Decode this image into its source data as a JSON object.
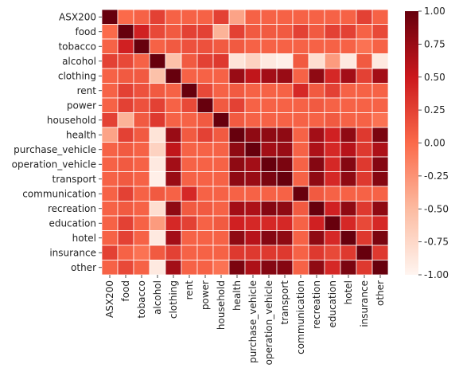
{
  "chart_data": {
    "type": "heatmap",
    "title": "",
    "xlabel": "",
    "ylabel": "",
    "labels": [
      "ASX200",
      "food",
      "tobacco",
      "alcohol",
      "clothing",
      "rent",
      "power",
      "household",
      "health",
      "purchase_vehicle",
      "operation_vehicle",
      "transport",
      "communication",
      "recreation",
      "education",
      "hotel",
      "insurance",
      "other"
    ],
    "value_range": [
      -1,
      1
    ],
    "colorbar_ticks": [
      "1.00",
      "0.75",
      "0.50",
      "0.25",
      "0.00",
      "-0.25",
      "-0.50",
      "-0.75",
      "-1.00"
    ],
    "colorscale": [
      "#fff5f0",
      "#fcbba1",
      "#fb6a4a",
      "#cb181d",
      "#67000d"
    ],
    "gridlines": "white",
    "matrix": [
      [
        1.0,
        0.0,
        0.05,
        0.25,
        0.05,
        0.05,
        0.05,
        0.25,
        -0.35,
        0.05,
        0.05,
        0.05,
        0.05,
        0.05,
        0.05,
        0.05,
        0.25,
        0.05
      ],
      [
        0.0,
        1.0,
        0.45,
        0.2,
        0.1,
        0.25,
        0.25,
        -0.45,
        0.25,
        0.1,
        0.1,
        0.1,
        0.25,
        0.1,
        0.25,
        0.25,
        0.05,
        0.2
      ],
      [
        0.05,
        0.45,
        1.0,
        0.05,
        0.1,
        0.15,
        0.15,
        0.1,
        0.1,
        0.05,
        0.05,
        0.05,
        0.05,
        0.05,
        0.05,
        0.05,
        -0.05,
        0.05
      ],
      [
        0.25,
        0.2,
        0.05,
        1.0,
        -0.55,
        0.1,
        0.25,
        0.3,
        -0.85,
        -0.7,
        -0.9,
        -0.95,
        0.1,
        -0.8,
        -0.3,
        -0.9,
        0.1,
        -0.9
      ],
      [
        0.05,
        0.1,
        0.1,
        -0.55,
        1.0,
        0.05,
        0.05,
        0.05,
        0.75,
        0.55,
        0.7,
        0.75,
        0.05,
        0.8,
        0.4,
        0.7,
        0.25,
        0.7
      ],
      [
        0.05,
        0.25,
        0.15,
        0.1,
        0.05,
        1.0,
        0.2,
        0.05,
        0.1,
        0.05,
        0.05,
        0.05,
        0.4,
        0.1,
        0.25,
        0.05,
        0.05,
        0.05
      ],
      [
        0.05,
        0.25,
        0.15,
        0.25,
        0.05,
        0.2,
        1.0,
        0.1,
        0.25,
        0.05,
        0.05,
        0.05,
        0.05,
        0.1,
        0.05,
        0.05,
        0.05,
        0.05
      ],
      [
        0.25,
        -0.45,
        0.1,
        0.3,
        0.05,
        0.05,
        0.1,
        1.0,
        0.1,
        0.05,
        0.05,
        0.05,
        0.05,
        0.05,
        0.1,
        0.05,
        0.05,
        -0.05
      ],
      [
        -0.35,
        0.25,
        0.1,
        -0.85,
        0.75,
        0.1,
        0.25,
        0.1,
        1.0,
        0.8,
        0.8,
        0.8,
        0.05,
        0.7,
        0.45,
        0.8,
        0.3,
        0.9
      ],
      [
        0.05,
        0.1,
        0.05,
        -0.7,
        0.55,
        0.05,
        0.05,
        0.05,
        0.8,
        1.0,
        0.7,
        0.75,
        0.05,
        0.65,
        0.4,
        0.6,
        0.3,
        0.65
      ],
      [
        0.05,
        0.1,
        0.05,
        -0.9,
        0.7,
        0.05,
        0.05,
        0.05,
        0.8,
        0.7,
        1.0,
        0.9,
        0.05,
        0.85,
        0.4,
        0.85,
        0.3,
        0.85
      ],
      [
        0.05,
        0.1,
        0.05,
        -0.95,
        0.75,
        0.05,
        0.05,
        0.05,
        0.8,
        0.75,
        0.9,
        1.0,
        0.05,
        0.8,
        0.4,
        0.8,
        0.3,
        0.85
      ],
      [
        0.05,
        0.25,
        0.05,
        0.1,
        0.05,
        0.4,
        0.05,
        0.05,
        0.05,
        0.05,
        0.05,
        0.05,
        1.0,
        0.1,
        0.05,
        0.05,
        0.05,
        0.05
      ],
      [
        0.05,
        0.1,
        0.05,
        -0.8,
        0.8,
        0.1,
        0.1,
        0.05,
        0.7,
        0.65,
        0.85,
        0.8,
        0.1,
        1.0,
        0.45,
        0.8,
        0.3,
        0.8
      ],
      [
        0.05,
        0.25,
        0.05,
        -0.3,
        0.4,
        0.25,
        0.05,
        0.1,
        0.45,
        0.4,
        0.4,
        0.4,
        0.05,
        0.45,
        1.0,
        0.4,
        0.2,
        0.4
      ],
      [
        0.05,
        0.25,
        0.05,
        -0.9,
        0.7,
        0.05,
        0.05,
        0.05,
        0.8,
        0.6,
        0.85,
        0.8,
        0.05,
        0.8,
        0.4,
        1.0,
        0.3,
        0.9
      ],
      [
        0.25,
        0.05,
        -0.05,
        0.1,
        0.25,
        0.05,
        0.05,
        0.05,
        0.3,
        0.3,
        0.3,
        0.3,
        0.05,
        0.3,
        0.2,
        0.3,
        1.0,
        0.3
      ],
      [
        0.05,
        0.2,
        0.05,
        -0.9,
        0.7,
        0.05,
        0.05,
        -0.05,
        0.9,
        0.65,
        0.85,
        0.85,
        0.05,
        0.8,
        0.4,
        0.9,
        0.3,
        1.0
      ]
    ]
  }
}
